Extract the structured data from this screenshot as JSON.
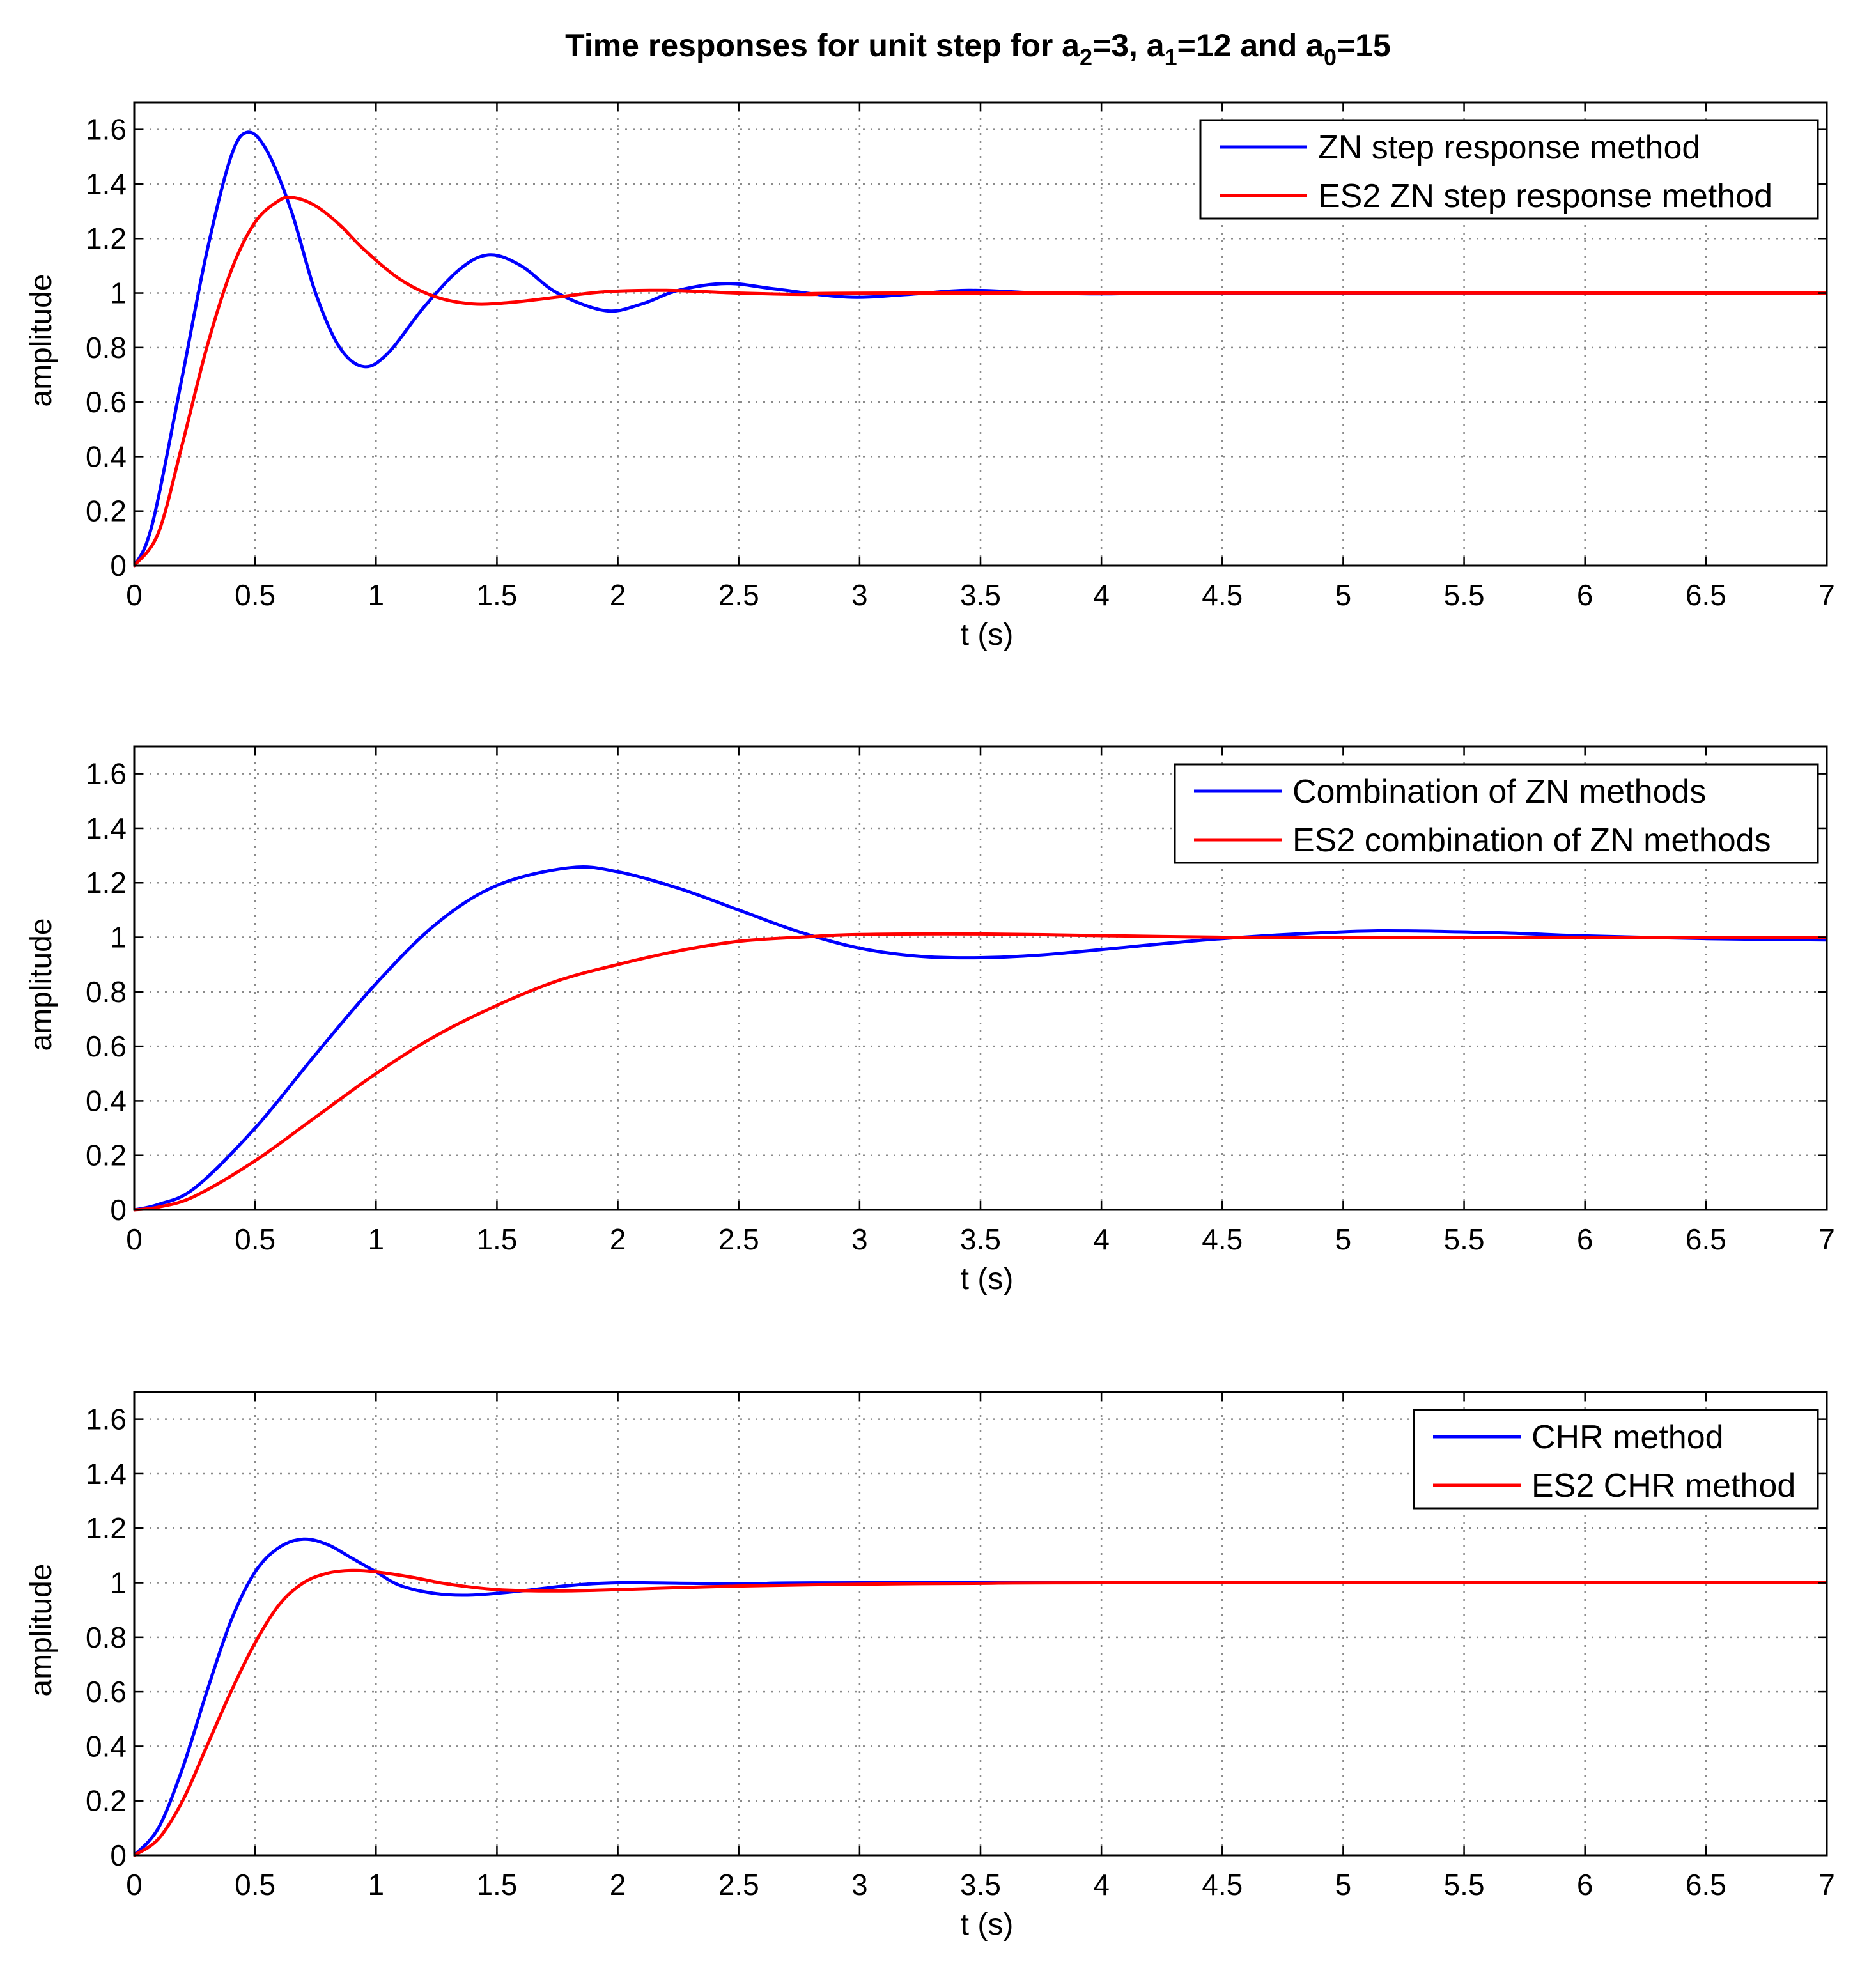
{
  "figure": {
    "title_main": "Time responses for unit step for a",
    "title_parts": [
      {
        "text": "Time responses for unit step for a",
        "sub": false
      },
      {
        "text": "2",
        "sub": true
      },
      {
        "text": "=3, a",
        "sub": false
      },
      {
        "text": "1",
        "sub": true
      },
      {
        "text": "=12 and a",
        "sub": false
      },
      {
        "text": "0",
        "sub": true
      },
      {
        "text": "=15",
        "sub": false
      }
    ]
  },
  "colors": {
    "blue": "#0000ff",
    "red": "#ff0000"
  },
  "chart_data": [
    {
      "type": "line",
      "xlabel": "t (s)",
      "ylabel": "amplitude",
      "xlim": [
        0,
        7
      ],
      "ylim": [
        0,
        1.7
      ],
      "xticks": [
        "0",
        "0.5",
        "1",
        "1.5",
        "2",
        "2.5",
        "3",
        "3.5",
        "4",
        "4.5",
        "5",
        "5.5",
        "6",
        "6.5",
        "7"
      ],
      "yticks": [
        "0",
        "0.2",
        "0.4",
        "0.6",
        "0.8",
        "1",
        "1.2",
        "1.4",
        "1.6"
      ],
      "grid": true,
      "legend_position": "top-right",
      "series": [
        {
          "name": "ZN step response method",
          "color": "#0000ff",
          "points": [
            [
              0,
              0
            ],
            [
              0.05,
              0.08
            ],
            [
              0.1,
              0.25
            ],
            [
              0.2,
              0.7
            ],
            [
              0.3,
              1.15
            ],
            [
              0.4,
              1.5
            ],
            [
              0.47,
              1.59
            ],
            [
              0.55,
              1.52
            ],
            [
              0.65,
              1.3
            ],
            [
              0.75,
              1.0
            ],
            [
              0.85,
              0.8
            ],
            [
              0.95,
              0.73
            ],
            [
              1.05,
              0.78
            ],
            [
              1.2,
              0.95
            ],
            [
              1.35,
              1.09
            ],
            [
              1.47,
              1.14
            ],
            [
              1.6,
              1.1
            ],
            [
              1.75,
              1.0
            ],
            [
              1.95,
              0.935
            ],
            [
              2.1,
              0.96
            ],
            [
              2.25,
              1.01
            ],
            [
              2.45,
              1.035
            ],
            [
              2.65,
              1.015
            ],
            [
              2.95,
              0.985
            ],
            [
              3.2,
              0.995
            ],
            [
              3.45,
              1.01
            ],
            [
              3.75,
              1.0
            ],
            [
              4.0,
              0.997
            ],
            [
              4.5,
              1.0
            ],
            [
              7,
              1.0
            ]
          ]
        },
        {
          "name": "ES2 ZN step response method",
          "color": "#ff0000",
          "points": [
            [
              0,
              0
            ],
            [
              0.1,
              0.12
            ],
            [
              0.2,
              0.45
            ],
            [
              0.3,
              0.8
            ],
            [
              0.4,
              1.08
            ],
            [
              0.5,
              1.26
            ],
            [
              0.6,
              1.34
            ],
            [
              0.66,
              1.35
            ],
            [
              0.75,
              1.32
            ],
            [
              0.85,
              1.25
            ],
            [
              0.95,
              1.16
            ],
            [
              1.1,
              1.05
            ],
            [
              1.25,
              0.985
            ],
            [
              1.4,
              0.96
            ],
            [
              1.55,
              0.965
            ],
            [
              1.75,
              0.985
            ],
            [
              1.95,
              1.005
            ],
            [
              2.2,
              1.01
            ],
            [
              2.5,
              1.0
            ],
            [
              2.8,
              0.995
            ],
            [
              3.2,
              1.0
            ],
            [
              7,
              1.0
            ]
          ]
        }
      ]
    },
    {
      "type": "line",
      "xlabel": "t (s)",
      "ylabel": "amplitude",
      "xlim": [
        0,
        7
      ],
      "ylim": [
        0,
        1.7
      ],
      "xticks": [
        "0",
        "0.5",
        "1",
        "1.5",
        "2",
        "2.5",
        "3",
        "3.5",
        "4",
        "4.5",
        "5",
        "5.5",
        "6",
        "6.5",
        "7"
      ],
      "yticks": [
        "0",
        "0.2",
        "0.4",
        "0.6",
        "0.8",
        "1",
        "1.2",
        "1.4",
        "1.6"
      ],
      "grid": true,
      "legend_position": "top-right",
      "series": [
        {
          "name": "Combination of ZN methods",
          "color": "#0000ff",
          "points": [
            [
              0,
              0
            ],
            [
              0.1,
              0.02
            ],
            [
              0.25,
              0.08
            ],
            [
              0.5,
              0.3
            ],
            [
              0.75,
              0.57
            ],
            [
              1.0,
              0.83
            ],
            [
              1.25,
              1.05
            ],
            [
              1.5,
              1.19
            ],
            [
              1.8,
              1.255
            ],
            [
              2.0,
              1.24
            ],
            [
              2.25,
              1.18
            ],
            [
              2.5,
              1.1
            ],
            [
              2.75,
              1.02
            ],
            [
              3.0,
              0.96
            ],
            [
              3.25,
              0.93
            ],
            [
              3.5,
              0.925
            ],
            [
              3.75,
              0.935
            ],
            [
              4.0,
              0.955
            ],
            [
              4.5,
              0.995
            ],
            [
              5.0,
              1.02
            ],
            [
              5.3,
              1.023
            ],
            [
              5.7,
              1.015
            ],
            [
              6.0,
              1.005
            ],
            [
              6.5,
              0.995
            ],
            [
              7,
              0.99
            ]
          ]
        },
        {
          "name": "ES2 combination of ZN methods",
          "color": "#ff0000",
          "points": [
            [
              0,
              0
            ],
            [
              0.1,
              0.01
            ],
            [
              0.25,
              0.05
            ],
            [
              0.5,
              0.18
            ],
            [
              0.75,
              0.34
            ],
            [
              1.0,
              0.5
            ],
            [
              1.25,
              0.64
            ],
            [
              1.5,
              0.75
            ],
            [
              1.75,
              0.84
            ],
            [
              2.0,
              0.9
            ],
            [
              2.25,
              0.95
            ],
            [
              2.5,
              0.985
            ],
            [
              2.75,
              1.0
            ],
            [
              3.0,
              1.01
            ],
            [
              3.5,
              1.012
            ],
            [
              4.0,
              1.006
            ],
            [
              4.5,
              1.0
            ],
            [
              5.0,
              0.998
            ],
            [
              6.0,
              1.0
            ],
            [
              7,
              1.0
            ]
          ]
        }
      ]
    },
    {
      "type": "line",
      "xlabel": "t (s)",
      "ylabel": "amplitude",
      "xlim": [
        0,
        7
      ],
      "ylim": [
        0,
        1.7
      ],
      "xticks": [
        "0",
        "0.5",
        "1",
        "1.5",
        "2",
        "2.5",
        "3",
        "3.5",
        "4",
        "4.5",
        "5",
        "5.5",
        "6",
        "6.5",
        "7"
      ],
      "yticks": [
        "0",
        "0.2",
        "0.4",
        "0.6",
        "0.8",
        "1",
        "1.2",
        "1.4",
        "1.6"
      ],
      "grid": true,
      "legend_position": "top-right",
      "series": [
        {
          "name": "CHR method",
          "color": "#0000ff",
          "points": [
            [
              0,
              0
            ],
            [
              0.1,
              0.1
            ],
            [
              0.2,
              0.32
            ],
            [
              0.3,
              0.6
            ],
            [
              0.4,
              0.86
            ],
            [
              0.5,
              1.04
            ],
            [
              0.6,
              1.13
            ],
            [
              0.7,
              1.16
            ],
            [
              0.8,
              1.14
            ],
            [
              0.9,
              1.09
            ],
            [
              1.0,
              1.04
            ],
            [
              1.1,
              0.99
            ],
            [
              1.25,
              0.96
            ],
            [
              1.4,
              0.955
            ],
            [
              1.6,
              0.97
            ],
            [
              1.8,
              0.99
            ],
            [
              2.0,
              1.0
            ],
            [
              2.3,
              0.998
            ],
            [
              2.7,
              0.995
            ],
            [
              3.0,
              1.0
            ],
            [
              7,
              1.0
            ]
          ]
        },
        {
          "name": "ES2 CHR method",
          "color": "#ff0000",
          "points": [
            [
              0,
              0
            ],
            [
              0.1,
              0.06
            ],
            [
              0.2,
              0.2
            ],
            [
              0.3,
              0.4
            ],
            [
              0.4,
              0.6
            ],
            [
              0.5,
              0.78
            ],
            [
              0.6,
              0.92
            ],
            [
              0.7,
              1.0
            ],
            [
              0.8,
              1.035
            ],
            [
              0.9,
              1.045
            ],
            [
              1.0,
              1.04
            ],
            [
              1.15,
              1.02
            ],
            [
              1.3,
              0.995
            ],
            [
              1.5,
              0.975
            ],
            [
              1.75,
              0.97
            ],
            [
              2.0,
              0.975
            ],
            [
              2.5,
              0.988
            ],
            [
              3.0,
              0.995
            ],
            [
              3.5,
              0.998
            ],
            [
              4.0,
              1.0
            ],
            [
              7,
              1.0
            ]
          ]
        }
      ]
    }
  ]
}
